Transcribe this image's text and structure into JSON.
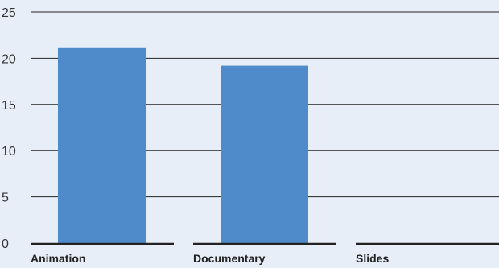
{
  "chart_data": {
    "type": "bar",
    "categories": [
      "Animation",
      "Documentary",
      "Slides"
    ],
    "values": [
      21.1,
      19.2,
      0
    ],
    "title": "",
    "xlabel": "",
    "ylabel": "",
    "ylim": [
      0,
      25
    ],
    "yticks": [
      "0",
      "5",
      "10",
      "15",
      "20",
      "25"
    ],
    "grid": true,
    "bar_color": "#4f8acb"
  }
}
